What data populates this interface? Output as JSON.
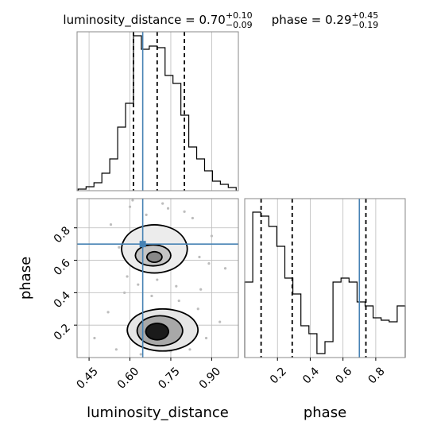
{
  "chart_data": [
    {
      "type": "histogram",
      "title": "luminosity_distance = 0.70",
      "title_sup": "+0.10",
      "title_sub": "−0.09",
      "bins": [
        0.41,
        0.439,
        0.468,
        0.497,
        0.526,
        0.555,
        0.584,
        0.613,
        0.642,
        0.671,
        0.7,
        0.729,
        0.758,
        0.787,
        0.816,
        0.845,
        0.874,
        0.903,
        0.932,
        0.961,
        0.99
      ],
      "values": [
        2,
        5,
        10,
        22,
        40,
        80,
        110,
        195,
        178,
        182,
        180,
        145,
        135,
        95,
        55,
        40,
        25,
        12,
        8,
        4
      ],
      "xlim": [
        0.406,
        0.998
      ],
      "ylim": [
        0,
        200
      ],
      "color": "#000000",
      "quantiles": [
        0.613,
        0.7,
        0.8
      ],
      "truth": 0.647,
      "truth_color": "#4682b4",
      "grid": true
    },
    {
      "type": "scatter",
      "xlabel": "luminosity_distance",
      "ylabel": "phase",
      "x": [
        0.47,
        0.52,
        0.55,
        0.58,
        0.6,
        0.63,
        0.66,
        0.7,
        0.74,
        0.78,
        0.82,
        0.86,
        0.9,
        0.93,
        0.56,
        0.61,
        0.68,
        0.75,
        0.8,
        0.85,
        0.89,
        0.53,
        0.59,
        0.64,
        0.72,
        0.77,
        0.83,
        0.88,
        0.95,
        0.62,
        0.855
      ],
      "y": [
        0.12,
        0.28,
        0.05,
        0.4,
        0.93,
        0.45,
        0.88,
        0.48,
        0.92,
        0.35,
        0.05,
        0.42,
        0.75,
        0.22,
        0.68,
        0.97,
        0.38,
        0.04,
        0.9,
        0.3,
        0.58,
        0.82,
        0.5,
        0.02,
        0.95,
        0.44,
        0.86,
        0.12,
        0.55,
        0.78,
        0.62
      ],
      "sample_color": "#bdbdbd",
      "contours": [
        {
          "fill": "#e6e6e6",
          "x": [
            0.86,
            0.819,
            0.72,
            0.621,
            0.58,
            0.621,
            0.72,
            0.819
          ],
          "y": [
            0.17,
            0.269,
            0.31,
            0.269,
            0.17,
            0.071,
            0.03,
            0.071
          ]
        },
        {
          "fill": "#a8a8a8",
          "x": [
            0.8,
            0.774,
            0.71,
            0.646,
            0.62,
            0.646,
            0.71,
            0.774
          ],
          "y": [
            0.165,
            0.236,
            0.265,
            0.236,
            0.165,
            0.094,
            0.065,
            0.094
          ]
        },
        {
          "fill": "#1a1a1a",
          "x": [
            0.745,
            0.732,
            0.7,
            0.668,
            0.655,
            0.668,
            0.7,
            0.732
          ],
          "y": [
            0.16,
            0.199,
            0.215,
            0.199,
            0.16,
            0.121,
            0.105,
            0.121
          ]
        },
        {
          "fill": "#ececec",
          "x": [
            0.82,
            0.782,
            0.69,
            0.598,
            0.56,
            0.598,
            0.69,
            0.782
          ],
          "y": [
            0.67,
            0.784,
            0.83,
            0.784,
            0.67,
            0.556,
            0.51,
            0.556
          ]
        },
        {
          "fill": "#c4c4c4",
          "x": [
            0.755,
            0.735,
            0.685,
            0.635,
            0.615,
            0.635,
            0.685,
            0.735
          ],
          "y": [
            0.63,
            0.68,
            0.7,
            0.68,
            0.63,
            0.58,
            0.56,
            0.58
          ]
        },
        {
          "fill": "#888888",
          "x": [
            0.72,
            0.711,
            0.69,
            0.669,
            0.66,
            0.669,
            0.69,
            0.711
          ],
          "y": [
            0.62,
            0.645,
            0.655,
            0.645,
            0.62,
            0.595,
            0.585,
            0.595
          ]
        }
      ],
      "truth": [
        0.647,
        0.7
      ],
      "truth_color": "#4682b4",
      "xlim": [
        0.406,
        0.998
      ],
      "ylim": [
        0,
        0.98
      ],
      "xticks": [
        0.45,
        {
          "value": 0.6,
          "label": "0.60"
        },
        0.75,
        {
          "value": 0.9,
          "label": "0.90"
        }
      ],
      "yticks": [
        0.2,
        0.4,
        0.6,
        0.8
      ],
      "grid": true
    },
    {
      "type": "histogram",
      "title": "phase = 0.29",
      "title_sup": "+0.45",
      "title_sub": "−0.19",
      "xlabel": "phase",
      "bins": [
        0,
        0.049,
        0.098,
        0.147,
        0.196,
        0.245,
        0.294,
        0.343,
        0.392,
        0.441,
        0.49,
        0.539,
        0.588,
        0.637,
        0.686,
        0.735,
        0.784,
        0.833,
        0.882,
        0.931,
        0.98
      ],
      "values": [
        95,
        183,
        178,
        165,
        140,
        100,
        80,
        40,
        30,
        5,
        20,
        95,
        100,
        95,
        70,
        65,
        50,
        47,
        45,
        65
      ],
      "xlim": [
        0,
        0.98
      ],
      "ylim": [
        0,
        200
      ],
      "color": "#000000",
      "xticks": [
        0.2,
        0.4,
        0.6,
        0.8
      ],
      "quantiles": [
        0.1,
        0.29,
        0.74
      ],
      "truth": 0.7,
      "truth_color": "#4682b4",
      "grid": true
    }
  ]
}
